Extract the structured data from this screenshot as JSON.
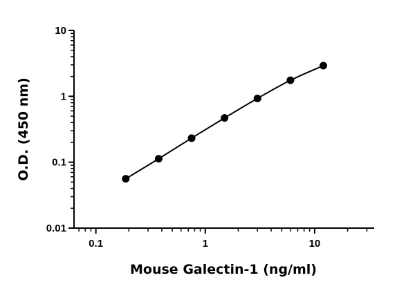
{
  "chart_data": {
    "type": "scatter",
    "title": "",
    "xlabel": "Mouse Galectin-1 (ng/ml)",
    "ylabel": "O.D. (450 nm)",
    "x_scale": "log",
    "y_scale": "log",
    "xlim": [
      0.0631,
      35
    ],
    "ylim": [
      0.01,
      10
    ],
    "x_tick_labels": [
      "0.1",
      "1",
      "10"
    ],
    "y_tick_labels": [
      "0.01",
      "0.1",
      "1",
      "10"
    ],
    "x_ticks": [
      0.1,
      1,
      10
    ],
    "y_ticks": [
      0.01,
      0.1,
      1,
      10
    ],
    "grid": false,
    "legend": "none",
    "series": [
      {
        "x": [
          0.1875,
          0.375,
          0.75,
          1.5,
          3,
          6,
          12
        ],
        "y": [
          0.056,
          0.113,
          0.232,
          0.47,
          0.93,
          1.75,
          2.92
        ],
        "fit_curve": true
      }
    ],
    "colors": {
      "points": "#000000",
      "line": "#000000",
      "axes": "#000000"
    }
  }
}
